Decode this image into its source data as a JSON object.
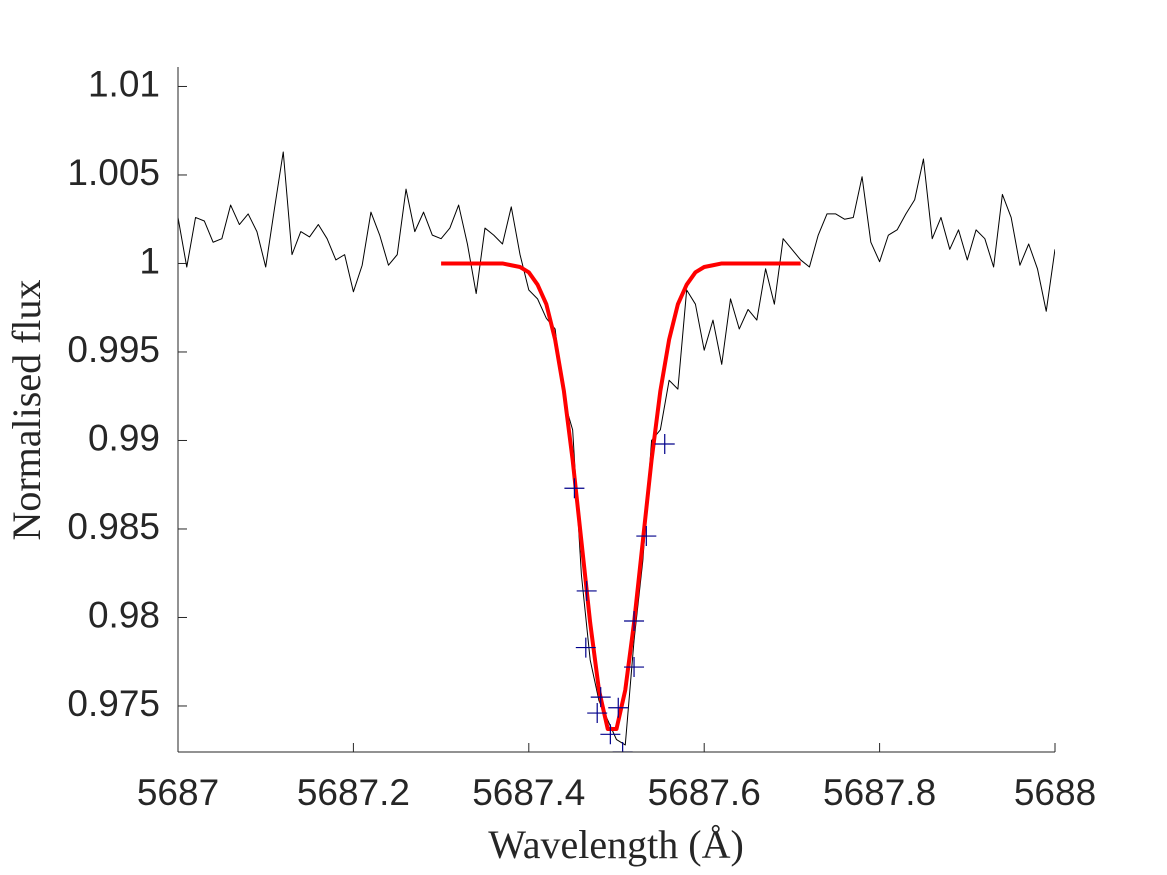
{
  "chart_data": {
    "type": "line",
    "xlabel": "Wavelength (Å)",
    "ylabel": "Normalised flux",
    "xlim": [
      5687,
      5688
    ],
    "ylim": [
      0.9724,
      1.0111
    ],
    "xticks": [
      5687,
      5687.2,
      5687.4,
      5687.6,
      5687.8,
      5688
    ],
    "yticks": [
      0.975,
      0.98,
      0.985,
      0.99,
      0.995,
      1,
      1.005,
      1.01
    ],
    "grid": false,
    "series": [
      {
        "color": "#000000",
        "line_width": 1,
        "x": [
          5687,
          5687.01,
          5687.02,
          5687.03,
          5687.04,
          5687.05,
          5687.06,
          5687.07,
          5687.08,
          5687.09,
          5687.1,
          5687.11,
          5687.12,
          5687.13,
          5687.14,
          5687.15,
          5687.16,
          5687.17,
          5687.18,
          5687.19,
          5687.2,
          5687.21,
          5687.22,
          5687.23,
          5687.24,
          5687.25,
          5687.26,
          5687.27,
          5687.28,
          5687.29,
          5687.3,
          5687.31,
          5687.32,
          5687.33,
          5687.34,
          5687.35,
          5687.36,
          5687.37,
          5687.38,
          5687.39,
          5687.4,
          5687.41,
          5687.42,
          5687.43,
          5687.44,
          5687.45,
          5687.46,
          5687.47,
          5687.48,
          5687.49,
          5687.5,
          5687.51,
          5687.52,
          5687.53,
          5687.54,
          5687.55,
          5687.56,
          5687.57,
          5687.58,
          5687.59,
          5687.6,
          5687.61,
          5687.62,
          5687.63,
          5687.64,
          5687.65,
          5687.66,
          5687.67,
          5687.68,
          5687.69,
          5687.7,
          5687.71,
          5687.72,
          5687.73,
          5687.74,
          5687.75,
          5687.76,
          5687.77,
          5687.78,
          5687.79,
          5687.8,
          5687.81,
          5687.82,
          5687.83,
          5687.84,
          5687.85,
          5687.86,
          5687.87,
          5687.88,
          5687.89,
          5687.9,
          5687.91,
          5687.92,
          5687.93,
          5687.94,
          5687.95,
          5687.96,
          5687.97,
          5687.98,
          5687.99,
          5688
        ],
        "values": [
          1.0026,
          0.9998,
          1.0026,
          1.0024,
          1.0012,
          1.0014,
          1.0033,
          1.0022,
          1.0028,
          1.0018,
          0.9998,
          1.0031,
          1.0063,
          1.0005,
          1.0018,
          1.0015,
          1.0022,
          1.0014,
          1.0002,
          1.0005,
          0.9984,
          0.9999,
          1.0029,
          1.0016,
          0.9999,
          1.0005,
          1.0042,
          1.0018,
          1.0029,
          1.0016,
          1.0014,
          1.002,
          1.0033,
          1.0011,
          0.9983,
          1.002,
          1.0016,
          1.0011,
          1.0032,
          1.0005,
          0.9985,
          0.998,
          0.9969,
          0.9963,
          0.9923,
          0.9906,
          0.9824,
          0.9776,
          0.9753,
          0.9742,
          0.9731,
          0.9728,
          0.9787,
          0.9832,
          0.99,
          0.9906,
          0.9934,
          0.9929,
          0.9985,
          0.9977,
          0.9951,
          0.9968,
          0.9943,
          0.998,
          0.9963,
          0.9974,
          0.9968,
          0.9997,
          0.9977,
          1.0014,
          1.0008,
          1.0002,
          0.9998,
          1.0016,
          1.0028,
          1.0028,
          1.0025,
          1.0026,
          1.0049,
          1.0012,
          1.0001,
          1.0016,
          1.0019,
          1.0028,
          1.0036,
          1.0059,
          1.0014,
          1.0026,
          1.0008,
          1.0019,
          1.0002,
          1.0019,
          1.0014,
          0.9998,
          1.0039,
          1.0026,
          0.9999,
          1.0011,
          0.9997,
          0.9973,
          1.0008
        ]
      },
      {
        "color": "#ff0000",
        "line_width": 4,
        "x": [
          5687.3,
          5687.31,
          5687.32,
          5687.33,
          5687.34,
          5687.35,
          5687.36,
          5687.37,
          5687.38,
          5687.39,
          5687.4,
          5687.41,
          5687.42,
          5687.43,
          5687.44,
          5687.45,
          5687.46,
          5687.47,
          5687.48,
          5687.49,
          5687.5,
          5687.51,
          5687.52,
          5687.53,
          5687.54,
          5687.55,
          5687.56,
          5687.57,
          5687.58,
          5687.59,
          5687.6,
          5687.61,
          5687.62,
          5687.63,
          5687.64,
          5687.65,
          5687.66,
          5687.67,
          5687.68,
          5687.69,
          5687.7,
          5687.71
        ],
        "values": [
          1,
          1,
          1,
          1,
          1,
          1,
          1,
          1,
          0.9999,
          0.9998,
          0.9995,
          0.9988,
          0.9977,
          0.9957,
          0.9928,
          0.9889,
          0.9843,
          0.9797,
          0.9759,
          0.9737,
          0.9737,
          0.9759,
          0.9797,
          0.9843,
          0.9889,
          0.9928,
          0.9957,
          0.9977,
          0.9988,
          0.9995,
          0.9998,
          0.9999,
          1,
          1,
          1,
          1,
          1,
          1,
          1,
          1,
          1,
          1
        ]
      },
      {
        "color": "#00008b",
        "marker": "+",
        "x": [
          5687.452,
          5687.466,
          5687.465,
          5687.482,
          5687.478,
          5687.493,
          5687.502,
          5687.507,
          5687.52,
          5687.52,
          5687.534,
          5687.555
        ],
        "values": [
          0.9873,
          0.9815,
          0.9783,
          0.9755,
          0.9746,
          0.9734,
          0.9749,
          0.9724,
          0.9772,
          0.9798,
          0.9846,
          0.9898
        ]
      }
    ]
  }
}
